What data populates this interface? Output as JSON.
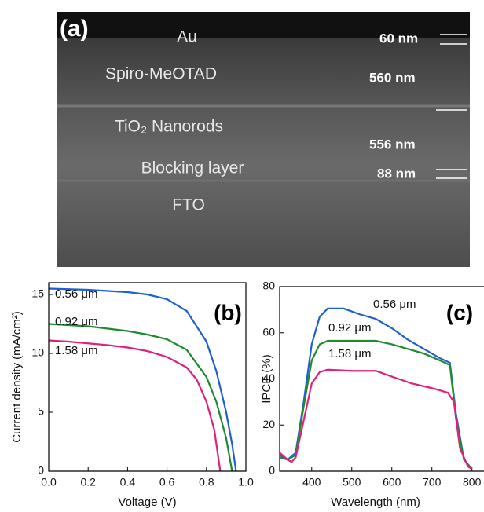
{
  "image_panel": {
    "label": "(a)",
    "layers": [
      "Au",
      "Spiro-MeOTAD",
      "TiO₂ Nanorods",
      "Blocking layer",
      "FTO"
    ],
    "thicknesses": [
      "60 nm",
      "560 nm",
      "556 nm",
      "88 nm"
    ]
  },
  "chart_data": [
    {
      "type": "line",
      "panel_label": "(b)",
      "xlabel": "Voltage (V)",
      "ylabel": "Current density (mA/cm²)",
      "xlim": [
        0,
        1
      ],
      "ylim": [
        0,
        16
      ],
      "xticks": [
        {
          "value": 0,
          "label": "0.0"
        },
        0.2,
        0.4,
        0.6,
        0.8,
        {
          "value": 1,
          "label": "1.0"
        }
      ],
      "yticks": [
        0,
        5,
        10,
        15
      ],
      "series": [
        {
          "name": "0.56 μm",
          "color": "#1f5fd6",
          "x": [
            0,
            0.1,
            0.2,
            0.3,
            0.4,
            0.5,
            0.6,
            0.7,
            0.8,
            0.85,
            0.9,
            0.93,
            0.95
          ],
          "values": [
            15.5,
            15.45,
            15.4,
            15.3,
            15.2,
            15.0,
            14.6,
            13.6,
            11,
            8.5,
            5,
            2.3,
            0
          ]
        },
        {
          "name": "0.92 μm",
          "color": "#1f8a2e",
          "x": [
            0,
            0.1,
            0.2,
            0.3,
            0.4,
            0.5,
            0.6,
            0.7,
            0.8,
            0.85,
            0.9,
            0.93
          ],
          "values": [
            12.5,
            12.4,
            12.3,
            12.1,
            11.9,
            11.6,
            11.2,
            10.3,
            8,
            5.9,
            2.8,
            0
          ]
        },
        {
          "name": "1.58 μm",
          "color": "#e0207a",
          "x": [
            0,
            0.1,
            0.2,
            0.3,
            0.4,
            0.5,
            0.6,
            0.7,
            0.75,
            0.8,
            0.84,
            0.87
          ],
          "values": [
            11.1,
            11.0,
            10.85,
            10.7,
            10.5,
            10.2,
            9.7,
            8.8,
            7.8,
            5.9,
            3.5,
            0
          ]
        }
      ]
    },
    {
      "type": "line",
      "panel_label": "(c)",
      "xlabel": "Wavelength (nm)",
      "ylabel": "IPCE (%)",
      "xlim": [
        320,
        830
      ],
      "ylim": [
        0,
        80
      ],
      "xticks": [
        400,
        500,
        600,
        700,
        800
      ],
      "yticks": [
        0,
        20,
        40,
        60,
        80
      ],
      "series": [
        {
          "name": "0.56 μm",
          "color": "#1f5fd6",
          "x": [
            320,
            340,
            360,
            380,
            400,
            420,
            440,
            480,
            520,
            560,
            600,
            640,
            680,
            720,
            745,
            760,
            780,
            800
          ],
          "values": [
            7,
            5,
            8,
            30,
            55,
            67,
            70.5,
            70.5,
            68,
            66,
            62,
            57,
            53,
            49,
            47,
            25,
            5,
            1
          ]
        },
        {
          "name": "0.92 μm",
          "color": "#1f8a2e",
          "x": [
            320,
            340,
            360,
            380,
            400,
            420,
            440,
            500,
            560,
            600,
            640,
            680,
            720,
            745,
            760,
            780,
            800
          ],
          "values": [
            6,
            5,
            7,
            28,
            48,
            55,
            56.5,
            56.5,
            56.5,
            55,
            53,
            51,
            48,
            46,
            23,
            5,
            1
          ]
        },
        {
          "name": "1.58 μm",
          "color": "#e0207a",
          "x": [
            320,
            340,
            350,
            360,
            380,
            400,
            420,
            440,
            500,
            560,
            600,
            650,
            700,
            740,
            755,
            770,
            790,
            800
          ],
          "values": [
            8,
            5,
            4,
            6,
            22,
            38,
            43,
            44,
            43.5,
            43.5,
            41,
            38,
            36,
            34,
            30,
            10,
            2,
            1
          ]
        }
      ]
    }
  ]
}
